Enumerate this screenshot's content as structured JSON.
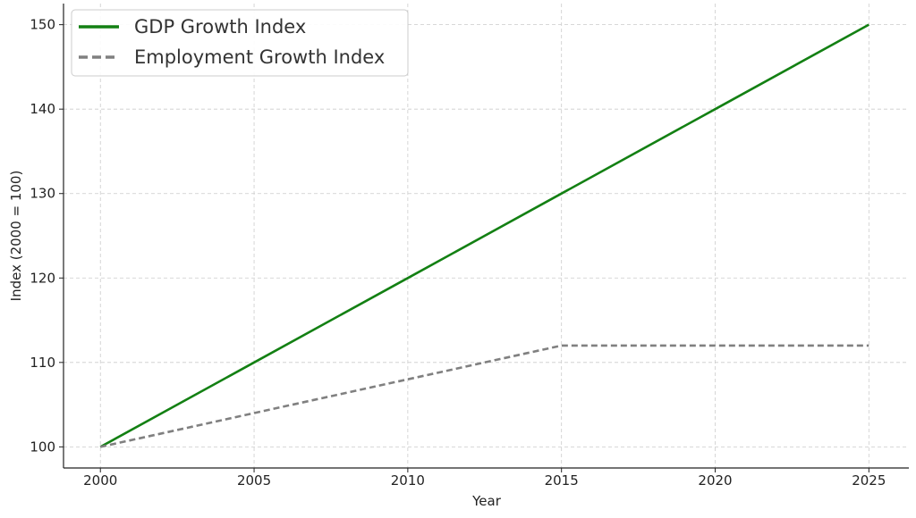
{
  "chart_data": {
    "type": "line",
    "title": "",
    "xlabel": "Year",
    "ylabel": "Index (2000 = 100)",
    "x": [
      2000,
      2005,
      2010,
      2015,
      2020,
      2025
    ],
    "x_ticks": [
      "2000",
      "2005",
      "2010",
      "2015",
      "2020",
      "2025"
    ],
    "y_ticks": [
      "100",
      "110",
      "120",
      "130",
      "140",
      "150"
    ],
    "xlim": [
      1998.8,
      2026.3
    ],
    "ylim": [
      97.5,
      152.5
    ],
    "grid": true,
    "legend_position": "top-left",
    "series": [
      {
        "name": "GDP Growth Index",
        "values": [
          100,
          110,
          120,
          130,
          140,
          150
        ],
        "color": "#138013",
        "style": "solid"
      },
      {
        "name": "Employment Growth Index",
        "values": [
          100,
          104,
          108,
          112,
          112,
          112
        ],
        "color": "#808080",
        "style": "dashed"
      }
    ]
  }
}
